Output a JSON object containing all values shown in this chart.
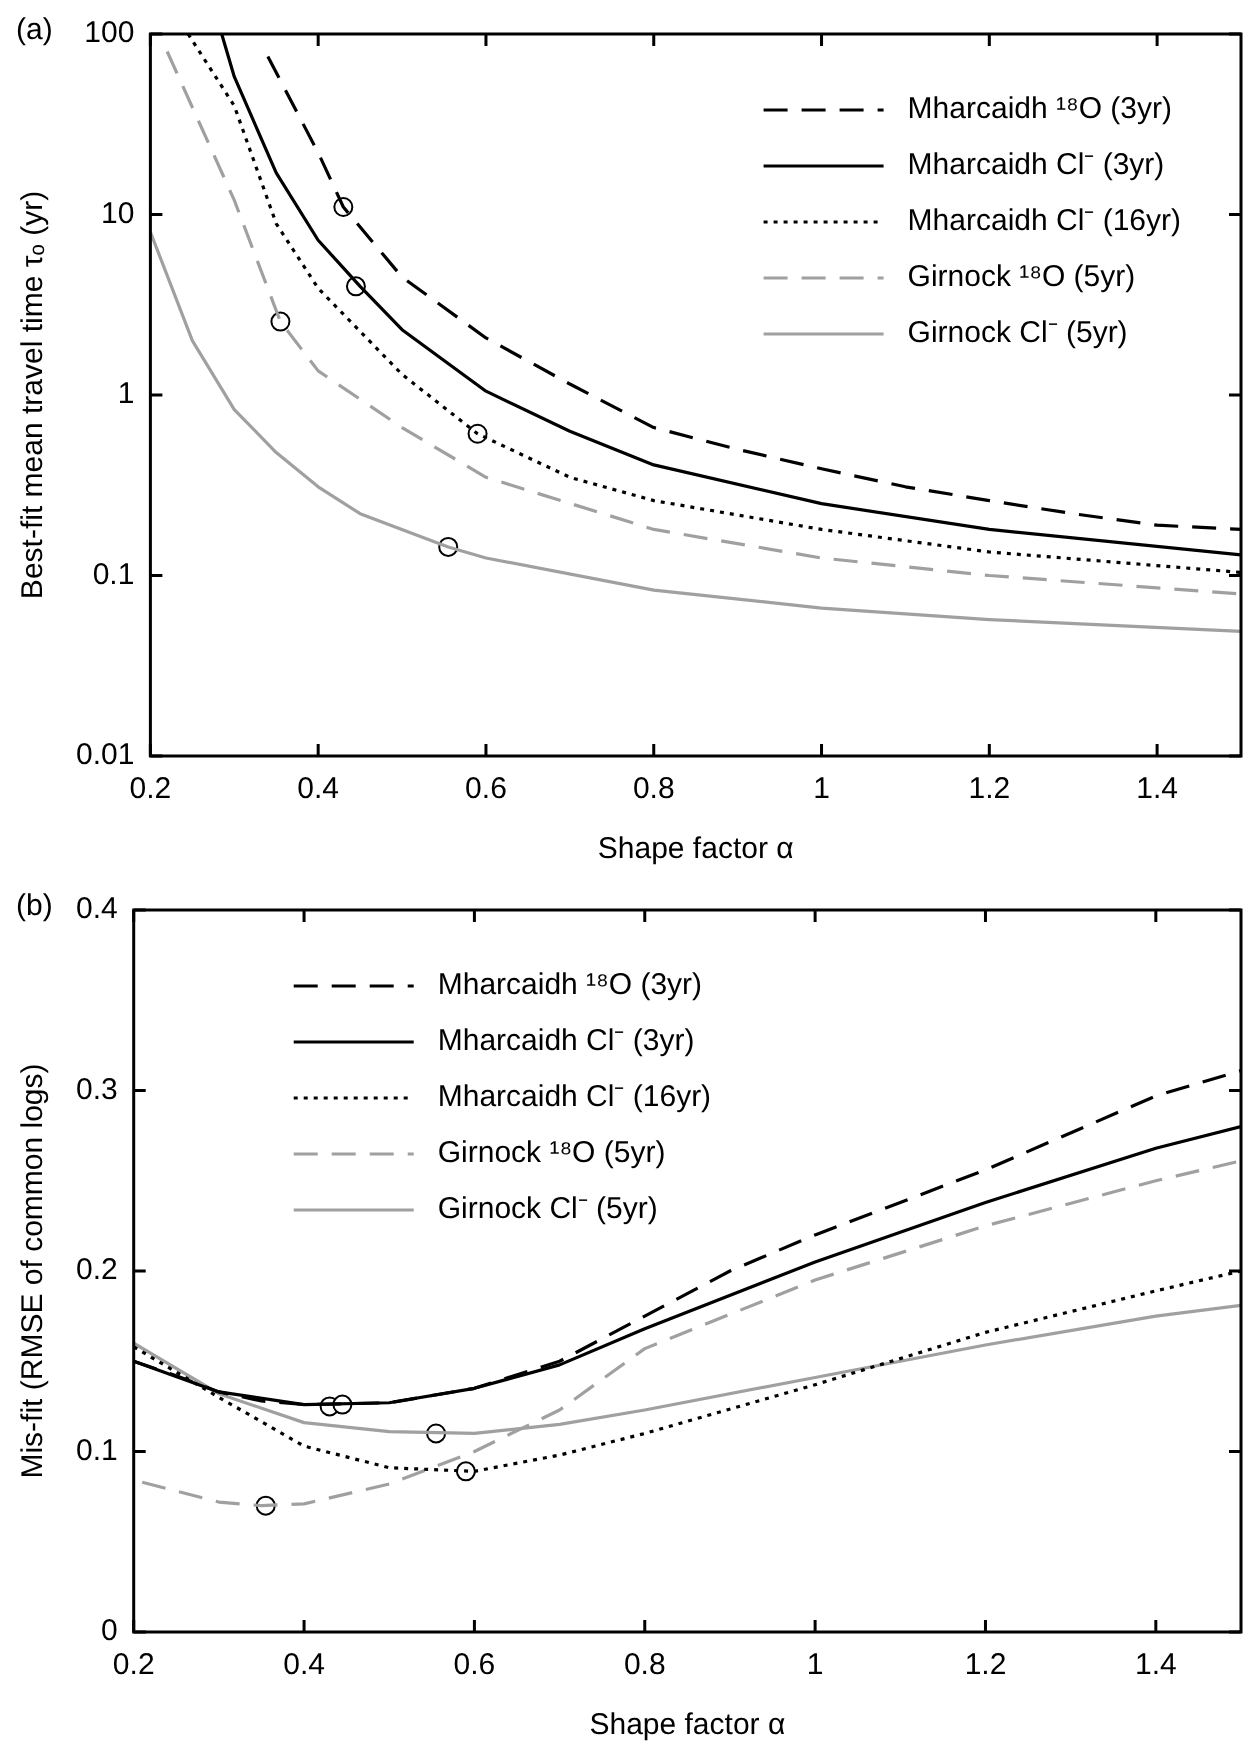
{
  "chart_data": [
    {
      "type": "line",
      "title": "(a)",
      "xlabel": "Shape factor α",
      "ylabel": "Best-fit mean travel time τₒ (yr)",
      "log": "y",
      "xlim": [
        0.2,
        1.5
      ],
      "ylim": [
        0.01,
        100
      ],
      "xticks": [
        0.2,
        0.4,
        0.6,
        0.8,
        1,
        1.2,
        1.4
      ],
      "yticks": [
        0.01,
        0.1,
        1,
        10,
        100
      ],
      "legend": "top right",
      "series": [
        {
          "name": "Mharcaidh ¹⁸O (3yr)",
          "color": "#000000",
          "line_style": "dashed",
          "x": [
            0.34,
            0.4,
            0.43,
            0.5,
            0.6,
            0.7,
            0.8,
            0.9,
            1.0,
            1.1,
            1.2,
            1.3,
            1.4,
            1.5
          ],
          "values": [
            75,
            22,
            11,
            4.5,
            2.07,
            1.15,
            0.66,
            0.5,
            0.39,
            0.31,
            0.26,
            0.22,
            0.19,
            0.18
          ]
        },
        {
          "name": "Mharcaidh Cl⁻ (3yr)",
          "color": "#000000",
          "line_style": "solid",
          "x": [
            0.285,
            0.3,
            0.35,
            0.4,
            0.45,
            0.5,
            0.6,
            0.7,
            0.8,
            1.0,
            1.2,
            1.5
          ],
          "values": [
            100,
            58,
            17,
            7.2,
            4.0,
            2.3,
            1.05,
            0.63,
            0.41,
            0.25,
            0.18,
            0.13
          ]
        },
        {
          "name": "Mharcaidh Cl⁻ (16yr)",
          "color": "#000000",
          "line_style": "dotted",
          "x": [
            0.245,
            0.3,
            0.35,
            0.4,
            0.5,
            0.59,
            0.7,
            0.8,
            1.0,
            1.2,
            1.5
          ],
          "values": [
            100,
            40,
            8.9,
            3.9,
            1.3,
            0.61,
            0.35,
            0.26,
            0.18,
            0.135,
            0.104
          ]
        },
        {
          "name": "Girnock ¹⁸O (5yr)",
          "color": "#a0a0a0",
          "line_style": "dashed",
          "x": [
            0.22,
            0.3,
            0.355,
            0.4,
            0.5,
            0.6,
            0.8,
            1.0,
            1.2,
            1.5
          ],
          "values": [
            80,
            12,
            2.55,
            1.36,
            0.66,
            0.35,
            0.18,
            0.125,
            0.1,
            0.079
          ]
        },
        {
          "name": "Girnock Cl⁻ (5yr)",
          "color": "#a0a0a0",
          "line_style": "solid",
          "x": [
            0.2,
            0.25,
            0.3,
            0.35,
            0.4,
            0.45,
            0.555,
            0.6,
            0.8,
            1.0,
            1.2,
            1.5
          ],
          "values": [
            8,
            2.0,
            0.83,
            0.48,
            0.31,
            0.22,
            0.144,
            0.125,
            0.083,
            0.066,
            0.057,
            0.049
          ]
        },
        {
          "type": "scatter",
          "marker": "circle",
          "color": "#ffffff",
          "x": [
            0.43,
            0.445,
            0.59,
            0.355,
            0.555
          ],
          "values": [
            11,
            4.0,
            0.61,
            2.55,
            0.144
          ]
        }
      ]
    },
    {
      "type": "line",
      "title": "(b)",
      "xlabel": "Shape factor α",
      "ylabel": "Mis-fit (RMSE of common logs)",
      "xlim": [
        0.2,
        1.5
      ],
      "ylim": [
        0,
        0.4
      ],
      "xticks": [
        0.2,
        0.4,
        0.6,
        0.8,
        1,
        1.2,
        1.4
      ],
      "yticks": [
        0,
        0.1,
        0.2,
        0.3,
        0.4
      ],
      "legend": "top left",
      "series": [
        {
          "name": "Mharcaidh ¹⁸O (3yr)",
          "color": "#000000",
          "line_style": "dashed",
          "x": [
            0.2,
            0.25,
            0.3,
            0.35,
            0.4,
            0.5,
            0.6,
            0.7,
            0.8,
            0.9,
            1.0,
            1.2,
            1.4,
            1.5
          ],
          "values": [
            0.15,
            0.142,
            0.133,
            0.128,
            0.126,
            0.127,
            0.135,
            0.15,
            0.175,
            0.2,
            0.22,
            0.256,
            0.297,
            0.311
          ]
        },
        {
          "name": "Mharcaidh Cl⁻ (3yr)",
          "color": "#000000",
          "line_style": "solid",
          "x": [
            0.2,
            0.3,
            0.4,
            0.5,
            0.6,
            0.7,
            0.8,
            1.0,
            1.2,
            1.4,
            1.5
          ],
          "values": [
            0.15,
            0.133,
            0.126,
            0.127,
            0.135,
            0.148,
            0.168,
            0.205,
            0.238,
            0.268,
            0.28
          ]
        },
        {
          "name": "Mharcaidh Cl⁻ (16yr)",
          "color": "#000000",
          "line_style": "dotted",
          "x": [
            0.2,
            0.3,
            0.4,
            0.5,
            0.6,
            0.7,
            0.8,
            1.0,
            1.2,
            1.4,
            1.5
          ],
          "values": [
            0.158,
            0.13,
            0.103,
            0.091,
            0.089,
            0.098,
            0.11,
            0.137,
            0.166,
            0.189,
            0.2
          ]
        },
        {
          "name": "Girnock ¹⁸O (5yr)",
          "color": "#a0a0a0",
          "line_style": "dashed",
          "x": [
            0.21,
            0.3,
            0.35,
            0.4,
            0.5,
            0.6,
            0.7,
            0.8,
            1.0,
            1.2,
            1.4,
            1.5
          ],
          "values": [
            0.083,
            0.072,
            0.07,
            0.071,
            0.082,
            0.1,
            0.123,
            0.157,
            0.195,
            0.225,
            0.25,
            0.261
          ]
        },
        {
          "name": "Girnock Cl⁻ (5yr)",
          "color": "#a0a0a0",
          "line_style": "solid",
          "x": [
            0.2,
            0.3,
            0.4,
            0.5,
            0.6,
            0.7,
            0.8,
            1.0,
            1.2,
            1.4,
            1.5
          ],
          "values": [
            0.16,
            0.132,
            0.116,
            0.111,
            0.11,
            0.115,
            0.123,
            0.141,
            0.159,
            0.175,
            0.181
          ]
        },
        {
          "type": "scatter",
          "marker": "circle",
          "color": "#ffffff",
          "x": [
            0.43,
            0.445,
            0.59,
            0.355,
            0.555
          ],
          "values": [
            0.125,
            0.126,
            0.089,
            0.07,
            0.11
          ]
        }
      ]
    }
  ]
}
